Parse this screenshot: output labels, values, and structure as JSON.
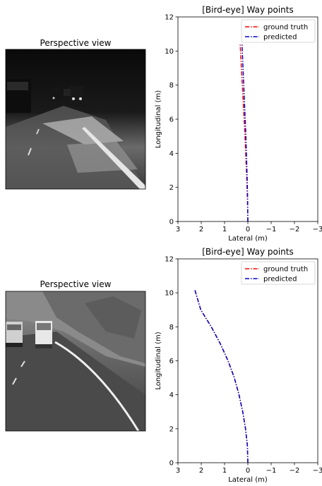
{
  "charts": [
    {
      "perspective_title": "Perspective view",
      "perspective_image": "grayscale dashcam frame, dark night road with cars ahead and lane marking on right",
      "chart_data": {
        "type": "line",
        "title": "[Bird-eye] Way points",
        "xlabel": "Lateral (m)",
        "ylabel": "Longitudinal (m)",
        "xlim": [
          3,
          -3
        ],
        "ylim": [
          0,
          12
        ],
        "xticks": [
          3,
          2,
          1,
          0,
          -1,
          -2,
          -3
        ],
        "xtick_labels": [
          "3",
          "2",
          "1",
          "0",
          "−1",
          "−2",
          "−3"
        ],
        "yticks": [
          0,
          2,
          4,
          6,
          8,
          10,
          12
        ],
        "legend": "top-right",
        "grid": false,
        "series": [
          {
            "name": "ground truth",
            "color": "#ff0000",
            "style": "dash-dot",
            "x": [
              0.0,
              0.02,
              0.05,
              0.09,
              0.13,
              0.18,
              0.23,
              0.28,
              0.33
            ],
            "y": [
              0.0,
              1.3,
              2.6,
              3.9,
              5.2,
              6.5,
              7.8,
              9.1,
              10.4
            ]
          },
          {
            "name": "predicted",
            "color": "#0000cc",
            "style": "dash-dot",
            "x": [
              0.0,
              0.01,
              0.03,
              0.06,
              0.09,
              0.13,
              0.17,
              0.21,
              0.25
            ],
            "y": [
              0.0,
              1.3,
              2.6,
              3.9,
              5.2,
              6.5,
              7.8,
              9.1,
              10.4
            ]
          }
        ]
      }
    },
    {
      "perspective_title": "Perspective view",
      "perspective_image": "grayscale dashcam frame, road curving left along a rocky hillside with vans ahead",
      "chart_data": {
        "type": "line",
        "title": "[Bird-eye] Way points",
        "xlabel": "Lateral (m)",
        "ylabel": "Longitudinal (m)",
        "xlim": [
          3,
          -3
        ],
        "ylim": [
          0,
          12
        ],
        "xticks": [
          3,
          2,
          1,
          0,
          -1,
          -2,
          -3
        ],
        "xtick_labels": [
          "3",
          "2",
          "1",
          "0",
          "−1",
          "−2",
          "−3"
        ],
        "yticks": [
          0,
          2,
          4,
          6,
          8,
          10,
          12
        ],
        "legend": "top-right",
        "grid": false,
        "series": [
          {
            "name": "ground truth",
            "color": "#ff0000",
            "style": "dash-dot",
            "x": [
              0.0,
              0.02,
              0.1,
              0.22,
              0.38,
              0.58,
              0.85,
              1.18,
              1.57,
              2.02,
              2.28
            ],
            "y": [
              0.0,
              1.0,
              2.0,
              3.0,
              4.0,
              5.0,
              6.0,
              7.0,
              8.0,
              9.0,
              10.2
            ]
          },
          {
            "name": "predicted",
            "color": "#0000cc",
            "style": "dash-dot",
            "x": [
              0.0,
              0.02,
              0.1,
              0.22,
              0.38,
              0.58,
              0.85,
              1.18,
              1.57,
              2.02,
              2.28
            ],
            "y": [
              0.0,
              1.0,
              2.0,
              3.0,
              4.0,
              5.0,
              6.0,
              7.0,
              8.0,
              9.0,
              10.2
            ]
          }
        ]
      }
    }
  ]
}
